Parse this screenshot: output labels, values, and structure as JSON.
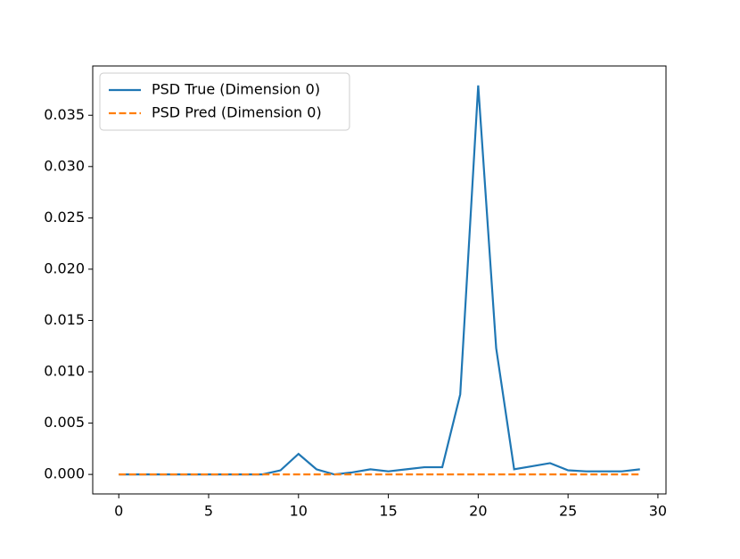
{
  "chart_data": {
    "type": "line",
    "x": [
      0,
      1,
      2,
      3,
      4,
      5,
      6,
      7,
      8,
      9,
      10,
      11,
      12,
      13,
      14,
      15,
      16,
      17,
      18,
      19,
      20,
      21,
      22,
      23,
      24,
      25,
      26,
      27,
      28,
      29
    ],
    "series": [
      {
        "name": "PSD True (Dimension 0)",
        "color": "#1f77b4",
        "dash": "solid",
        "values": [
          0,
          0,
          0,
          0,
          0,
          0,
          0,
          0,
          0,
          0.0004,
          0.002,
          0.0005,
          0,
          0.0002,
          0.0005,
          0.0003,
          0.0005,
          0.0007,
          0.0007,
          0.0078,
          0.0379,
          0.0123,
          0.0005,
          0.0008,
          0.0011,
          0.0004,
          0.0003,
          0.0003,
          0.0003,
          0.0005
        ]
      },
      {
        "name": "PSD Pred (Dimension 0)",
        "color": "#ff7f0e",
        "dash": "dashed",
        "values": [
          0,
          0,
          0,
          0,
          0,
          0,
          0,
          0,
          0,
          0,
          0,
          0,
          0,
          0,
          0,
          0,
          0,
          0,
          0,
          0,
          0,
          0,
          0,
          0,
          0,
          0,
          0,
          0,
          0,
          0
        ]
      }
    ],
    "xlim": [
      -1.45,
      30.45
    ],
    "xticks": [
      0,
      5,
      10,
      15,
      20,
      25,
      30
    ],
    "ylim": [
      -0.0019,
      0.0398
    ],
    "yticks": [
      {
        "value": 0,
        "label": "0.000"
      },
      {
        "value": 0.005,
        "label": "0.005"
      },
      {
        "value": 0.01,
        "label": "0.010"
      },
      {
        "value": 0.015,
        "label": "0.015"
      },
      {
        "value": 0.02,
        "label": "0.020"
      },
      {
        "value": 0.025,
        "label": "0.025"
      },
      {
        "value": 0.03,
        "label": "0.030"
      },
      {
        "value": 0.035,
        "label": "0.035"
      }
    ],
    "legend": "upper left"
  }
}
